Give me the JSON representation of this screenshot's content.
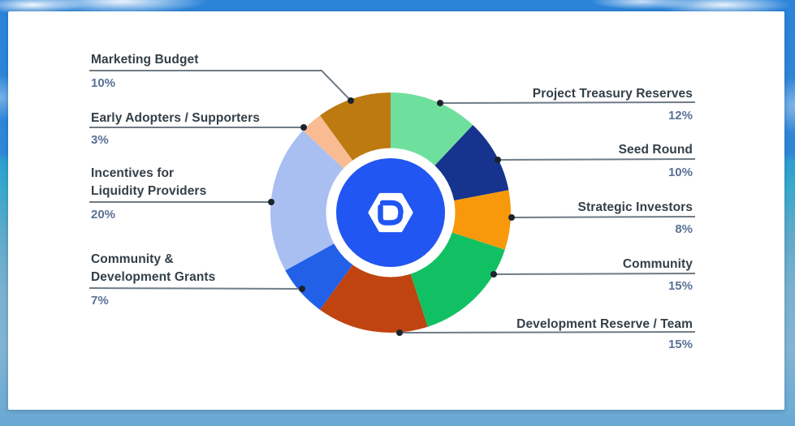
{
  "chart_data": {
    "type": "pie",
    "subtype": "donut",
    "title": "",
    "direction": "clockwise",
    "start_angle_deg": 0,
    "categories": [
      "Project Treasury Reserves",
      "Seed Round",
      "Strategic Investors",
      "Community",
      "Development Reserve / Team",
      "Community &\nDevelopment Grants",
      "Incentives for\nLiquidity Providers",
      "Early Adopters / Supporters",
      "Marketing Budget"
    ],
    "values": [
      12,
      10,
      8,
      15,
      15,
      7,
      20,
      3,
      10
    ],
    "slices": [
      {
        "label": "Project Treasury Reserves",
        "value": 12,
        "pct_label": "12%",
        "color": "#6FDF9D",
        "side": "right"
      },
      {
        "label": "Seed Round",
        "value": 10,
        "pct_label": "10%",
        "color": "#16338E",
        "side": "right"
      },
      {
        "label": "Strategic Investors",
        "value": 8,
        "pct_label": "8%",
        "color": "#F8990B",
        "side": "right"
      },
      {
        "label": "Community",
        "value": 15,
        "pct_label": "15%",
        "color": "#12C064",
        "side": "right"
      },
      {
        "label": "Development Reserve / Team",
        "value": 15,
        "pct_label": "15%",
        "color": "#C04410",
        "side": "right"
      },
      {
        "label": "Community &\nDevelopment Grants",
        "value": 7,
        "pct_label": "7%",
        "color": "#2360E8",
        "side": "left"
      },
      {
        "label": "Incentives for\nLiquidity Providers",
        "value": 20,
        "pct_label": "20%",
        "color": "#A9BFF2",
        "side": "left"
      },
      {
        "label": "Early Adopters / Supporters",
        "value": 3,
        "pct_label": "3%",
        "color": "#F9BC92",
        "side": "left"
      },
      {
        "label": "Marketing Budget",
        "value": 10,
        "pct_label": "10%",
        "color": "#BD7A10",
        "side": "left"
      }
    ],
    "center_logo": "brand-shield-d-icon",
    "legend_position": "callouts-both-sides"
  },
  "colors": {
    "center_disc": "#2156F2",
    "label_text": "#333F48",
    "percent_text": "#5A7196",
    "callout_line": "#6F7B86",
    "callout_dot": "#1B242C",
    "card_background": "#FFFFFF"
  }
}
